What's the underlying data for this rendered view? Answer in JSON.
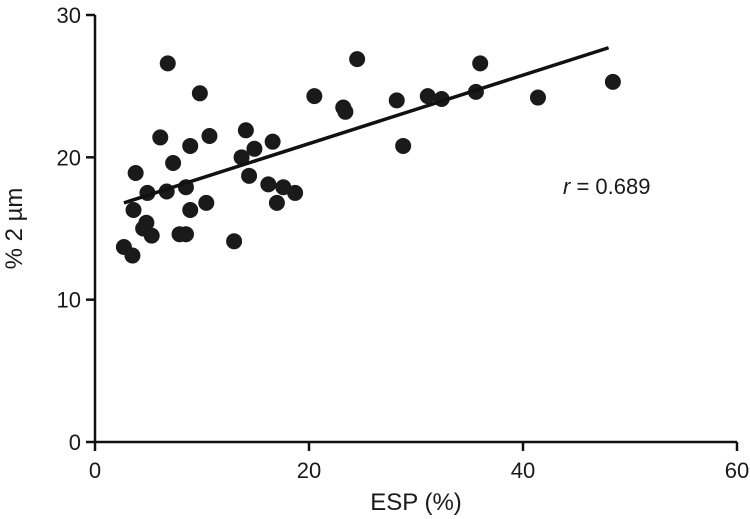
{
  "chart_data": {
    "type": "scatter",
    "xlabel": "ESP (%)",
    "ylabel": "%  2 µm",
    "xlim": [
      0,
      60
    ],
    "ylim": [
      0,
      30
    ],
    "x_ticks": [
      0,
      20,
      40,
      60
    ],
    "y_ticks": [
      0,
      10,
      20,
      30
    ],
    "x_tick_labels": [
      "0",
      "20",
      "40",
      "60"
    ],
    "y_tick_labels": [
      "0",
      "10",
      "20",
      "30"
    ],
    "grid": false,
    "legend": "none",
    "annotation": {
      "r_symbol": "r",
      "text": " = 0.689"
    },
    "trendline": {
      "x": [
        2.7,
        48.0
      ],
      "y": [
        16.8,
        27.7
      ]
    },
    "points": [
      {
        "x": 2.7,
        "y": 13.7
      },
      {
        "x": 3.5,
        "y": 13.1
      },
      {
        "x": 3.6,
        "y": 16.3
      },
      {
        "x": 3.8,
        "y": 18.9
      },
      {
        "x": 4.5,
        "y": 15.0
      },
      {
        "x": 4.8,
        "y": 15.4
      },
      {
        "x": 4.9,
        "y": 17.5
      },
      {
        "x": 5.3,
        "y": 14.5
      },
      {
        "x": 6.1,
        "y": 21.4
      },
      {
        "x": 6.7,
        "y": 17.6
      },
      {
        "x": 6.8,
        "y": 26.6
      },
      {
        "x": 7.3,
        "y": 19.6
      },
      {
        "x": 7.9,
        "y": 14.6
      },
      {
        "x": 8.5,
        "y": 14.6
      },
      {
        "x": 8.5,
        "y": 17.9
      },
      {
        "x": 8.9,
        "y": 16.3
      },
      {
        "x": 8.9,
        "y": 20.8
      },
      {
        "x": 9.8,
        "y": 24.5
      },
      {
        "x": 10.4,
        "y": 16.8
      },
      {
        "x": 10.7,
        "y": 21.5
      },
      {
        "x": 13.0,
        "y": 14.1
      },
      {
        "x": 13.7,
        "y": 20.0
      },
      {
        "x": 14.1,
        "y": 21.9
      },
      {
        "x": 14.4,
        "y": 18.7
      },
      {
        "x": 14.9,
        "y": 20.6
      },
      {
        "x": 16.2,
        "y": 18.1
      },
      {
        "x": 16.6,
        "y": 21.1
      },
      {
        "x": 17.0,
        "y": 16.8
      },
      {
        "x": 17.6,
        "y": 17.9
      },
      {
        "x": 18.7,
        "y": 17.5
      },
      {
        "x": 20.5,
        "y": 24.3
      },
      {
        "x": 23.2,
        "y": 23.5
      },
      {
        "x": 23.4,
        "y": 23.2
      },
      {
        "x": 24.5,
        "y": 26.9
      },
      {
        "x": 28.2,
        "y": 24.0
      },
      {
        "x": 28.8,
        "y": 20.8
      },
      {
        "x": 31.1,
        "y": 24.3
      },
      {
        "x": 32.4,
        "y": 24.1
      },
      {
        "x": 35.6,
        "y": 24.6
      },
      {
        "x": 36.0,
        "y": 26.6
      },
      {
        "x": 41.4,
        "y": 24.2
      },
      {
        "x": 48.4,
        "y": 25.3
      }
    ]
  }
}
